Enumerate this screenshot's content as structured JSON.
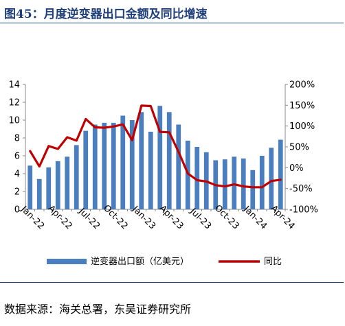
{
  "figure_title": "图45：月度逆变器出口金额及同比增速",
  "source_note": "数据来源：海关总署，东吴证券研究所",
  "colors": {
    "bar": "#4a7ebf",
    "line": "#c00000",
    "title": "#1f3f7a",
    "axis": "#888888"
  },
  "chart_data": {
    "type": "bar",
    "title": "",
    "categories": [
      "Jan-22",
      "Feb-22",
      "Mar-22",
      "Apr-22",
      "May-22",
      "Jun-22",
      "Jul-22",
      "Aug-22",
      "Sep-22",
      "Oct-22",
      "Nov-22",
      "Dec-22",
      "Jan-23",
      "Feb-23",
      "Mar-23",
      "Apr-23",
      "May-23",
      "Jun-23",
      "Jul-23",
      "Aug-23",
      "Sep-23",
      "Oct-23",
      "Nov-23",
      "Dec-23",
      "Jan-24",
      "Feb-24",
      "Mar-24",
      "Apr-24"
    ],
    "tick_labels": [
      "Jan-22",
      "Apr-22",
      "Jul-22",
      "Oct-22",
      "Jan-23",
      "Apr-23",
      "Jul-23",
      "Oct-23",
      "Jan-24",
      "Apr-24"
    ],
    "series": [
      {
        "name": "逆变器出口额（亿美元）",
        "type": "bar",
        "axis": "left",
        "values": [
          4.9,
          3.4,
          4.7,
          5.4,
          5.9,
          7.2,
          8.8,
          9.5,
          9.7,
          9.7,
          10.5,
          10.0,
          10.9,
          8.7,
          11.6,
          10.9,
          9.5,
          7.7,
          7.0,
          6.4,
          5.5,
          5.6,
          5.9,
          5.7,
          4.4,
          6.0,
          6.9,
          7.8
        ]
      },
      {
        "name": "同比",
        "type": "line",
        "axis": "right",
        "values": [
          40,
          3,
          52,
          45,
          73,
          65,
          117,
          97,
          96,
          99,
          104,
          66,
          149,
          148,
          86,
          85,
          38,
          -14,
          -30,
          -33,
          -42,
          -45,
          -40,
          -45,
          -47,
          -47,
          -32,
          -29
        ]
      }
    ],
    "y_left": {
      "range": [
        0,
        14
      ],
      "ticks": [
        0,
        2,
        4,
        6,
        8,
        10,
        12,
        14
      ],
      "tick_labels": [
        "0",
        "2",
        "4",
        "6",
        "8",
        "10",
        "12",
        "14"
      ]
    },
    "y_right": {
      "range": [
        -100,
        200
      ],
      "ticks": [
        -100,
        -50,
        0,
        50,
        100,
        150,
        200
      ],
      "tick_labels": [
        "-100%",
        "-50%",
        "0%",
        "50%",
        "100%",
        "150%",
        "200%"
      ]
    },
    "legend": {
      "position": "bottom",
      "items": [
        "逆变器出口额（亿美元）",
        "同比"
      ]
    },
    "grid": false
  }
}
